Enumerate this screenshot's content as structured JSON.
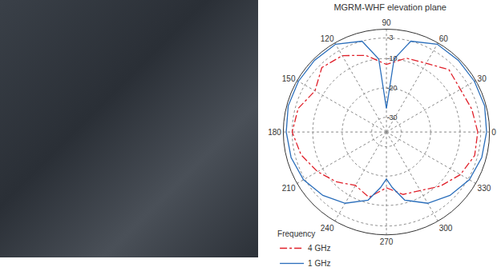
{
  "chart_data": {
    "type": "polar",
    "title": "MGRM-WHF elevation plane",
    "legend_title": "Frequency",
    "legend": "bottom left",
    "grid": true,
    "rlim": [
      -35,
      0
    ],
    "rticks": [
      -3,
      -10,
      -20,
      -30
    ],
    "thetaticks": [
      0,
      30,
      60,
      90,
      120,
      150,
      180,
      210,
      240,
      270,
      300,
      330
    ],
    "series": [
      {
        "name": "4 GHz",
        "color": "#e0202a",
        "line_style": "dashdot",
        "theta": [
          0,
          15,
          30,
          45,
          60,
          75,
          90,
          105,
          120,
          135,
          150,
          165,
          180,
          195,
          210,
          225,
          240,
          255,
          270,
          285,
          300,
          315,
          330,
          345
        ],
        "values": [
          -4,
          -5,
          -6,
          -5,
          -8,
          -9,
          -12,
          -8,
          -5,
          -4,
          -7,
          -4,
          -3,
          -5,
          -8,
          -11,
          -14,
          -12,
          -16,
          -13,
          -12,
          -9,
          -6,
          -4
        ]
      },
      {
        "name": "1 GHz",
        "color": "#2a6ebb",
        "line_style": "solid",
        "theta": [
          0,
          15,
          30,
          45,
          60,
          75,
          84,
          90,
          96,
          105,
          120,
          135,
          150,
          165,
          180,
          195,
          210,
          225,
          240,
          255,
          264,
          270,
          276,
          285,
          300,
          315,
          330,
          345
        ],
        "values": [
          -1,
          -0.5,
          -0.5,
          -0.5,
          -0.5,
          -3,
          -10,
          -27,
          -10,
          -3,
          -0.5,
          -0.5,
          -0.5,
          -0.5,
          -1,
          -1.5,
          -2.5,
          -4.5,
          -7,
          -11,
          -16,
          -19,
          -16,
          -11,
          -7,
          -4.5,
          -2.5,
          -1.5
        ]
      }
    ]
  }
}
